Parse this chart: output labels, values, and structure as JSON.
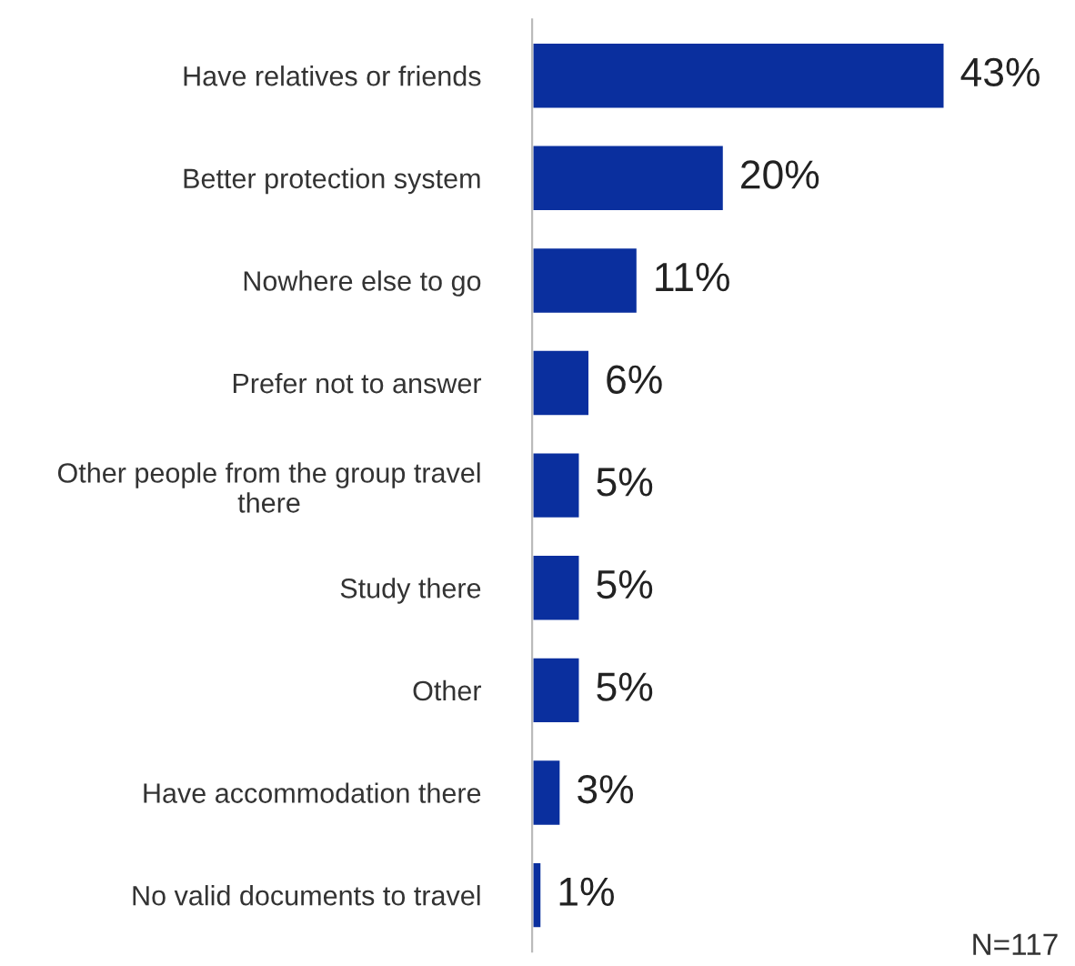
{
  "chart_data": {
    "type": "bar",
    "orientation": "horizontal",
    "categories": [
      "Have relatives or friends",
      "Better protection system",
      "Nowhere else to go",
      "Prefer not to answer",
      "Other people from the group travel\nthere",
      "Study there",
      "Other",
      "Have accommodation there",
      "No valid documents to travel"
    ],
    "values": [
      43,
      20,
      11,
      6,
      5,
      5,
      5,
      3,
      1
    ],
    "value_labels": [
      "43%",
      "20%",
      "11%",
      "6%",
      "5%",
      "5%",
      "5%",
      "3%",
      "1%"
    ],
    "color": "#0a2f9e",
    "grid": false,
    "legend": false,
    "tick_labels": "y",
    "annotations": [
      "N=117"
    ]
  }
}
